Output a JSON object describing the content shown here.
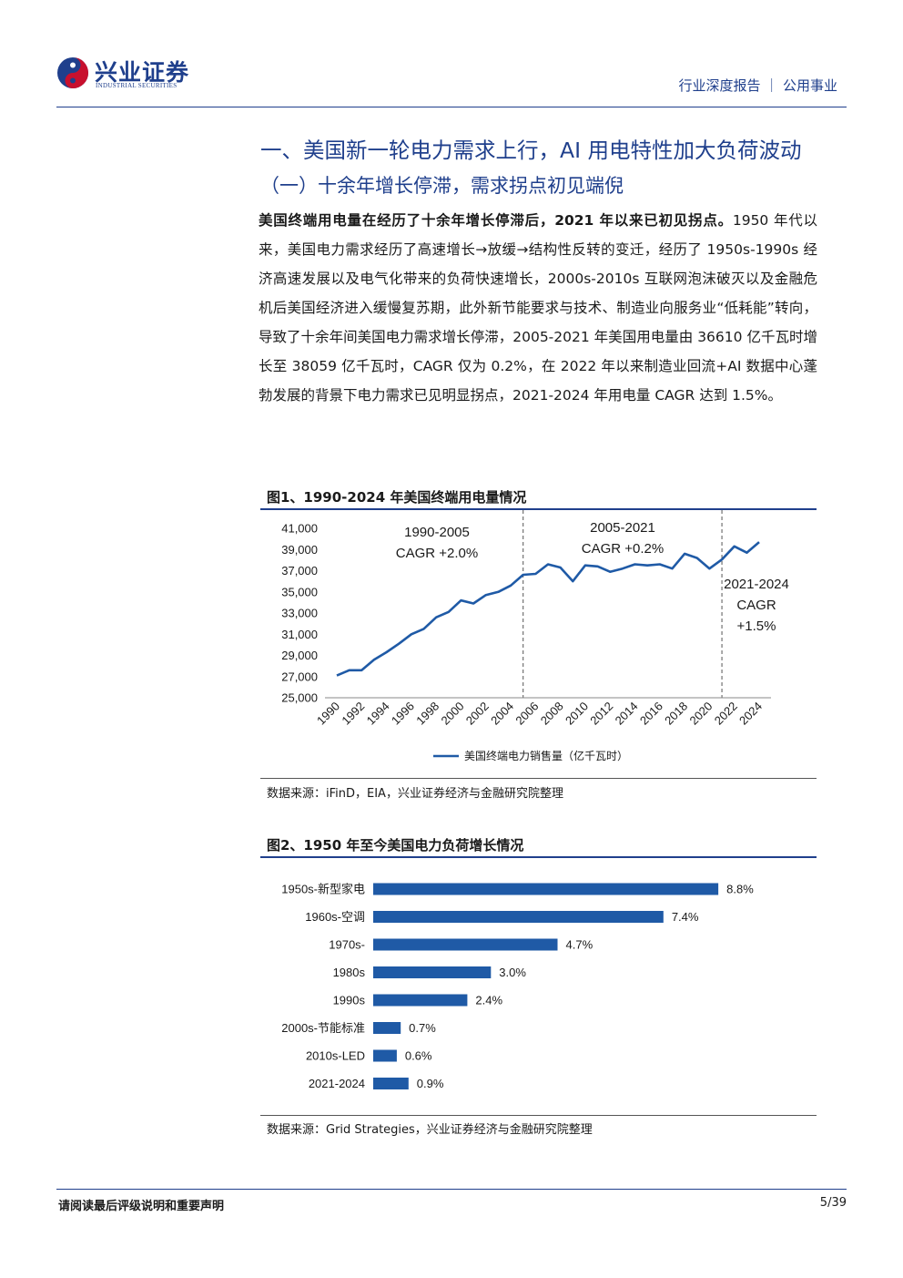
{
  "header": {
    "logo_cn": "兴业证券",
    "logo_en": "INDUSTRIAL SECURITIES",
    "category": "行业深度报告 ｜ 公用事业"
  },
  "section": {
    "h1": "一、美国新一轮电力需求上行，AI 用电特性加大负荷波动",
    "h2": "（一）十余年增长停滞，需求拐点初见端倪"
  },
  "paragraph": {
    "bold_lead": "美国终端用电量在经历了十余年增长停滞后，2021 年以来已初见拐点。",
    "body": "1950 年代以来，美国电力需求经历了高速增长→放缓→结构性反转的变迁，经历了 1950s-1990s 经济高速发展以及电气化带来的负荷快速增长，2000s-2010s 互联网泡沫破灭以及金融危机后美国经济进入缓慢复苏期，此外新节能要求与技术、制造业向服务业“低耗能”转向，导致了十余年间美国电力需求增长停滞，2005-2021 年美国用电量由 36610 亿千瓦时增长至 38059 亿千瓦时，CAGR 仅为 0.2%，在 2022 年以来制造业回流+AI 数据中心蓬勃发展的背景下电力需求已见明显拐点，2021-2024 年用电量 CAGR 达到 1.5%。"
  },
  "figure1": {
    "title": "图1、1990-2024 年美国终端用电量情况",
    "source": "数据来源：iFinD，EIA，兴业证券经济与金融研究院整理"
  },
  "figure2": {
    "title": "图2、1950 年至今美国电力负荷增长情况",
    "source": "数据来源：Grid Strategies，兴业证券经济与金融研究院整理"
  },
  "footer": {
    "disclaimer": "请阅读最后评级说明和重要声明",
    "page": "5/39"
  },
  "colors": {
    "brand": "#1f3f8c",
    "series": "#1f5aa6",
    "logo_red": "#c8102e"
  },
  "chart_data": [
    {
      "type": "line",
      "x": [
        1990,
        1991,
        1992,
        1993,
        1994,
        1995,
        1996,
        1997,
        1998,
        1999,
        2000,
        2001,
        2002,
        2003,
        2004,
        2005,
        2006,
        2007,
        2008,
        2009,
        2010,
        2011,
        2012,
        2013,
        2014,
        2015,
        2016,
        2017,
        2018,
        2019,
        2020,
        2021,
        2022,
        2023,
        2024
      ],
      "x_tick_labels": [
        "1990",
        "1992",
        "1994",
        "1996",
        "1998",
        "2000",
        "2002",
        "2004",
        "2006",
        "2008",
        "2010",
        "2012",
        "2014",
        "2016",
        "2018",
        "2020",
        "2022",
        "2024"
      ],
      "series": [
        {
          "name": "美国终端电力销售量（亿千瓦时）",
          "values": [
            27100,
            27600,
            27600,
            28600,
            29300,
            30100,
            31000,
            31500,
            32600,
            33100,
            34200,
            33900,
            34700,
            35000,
            35600,
            36610,
            36700,
            37600,
            37300,
            36000,
            37500,
            37400,
            36900,
            37200,
            37600,
            37500,
            37600,
            37200,
            38600,
            38200,
            37200,
            38059,
            39300,
            38700,
            39700
          ]
        }
      ],
      "y_ticks": [
        "41,000",
        "39,000",
        "37,000",
        "35,000",
        "33,000",
        "31,000",
        "29,000",
        "27,000",
        "25,000"
      ],
      "ylim": [
        25000,
        41000
      ],
      "vlines": [
        2005,
        2021
      ],
      "annotations": [
        {
          "line1": "1990-2005",
          "line2": "CAGR +2.0%"
        },
        {
          "line1": "2005-2021",
          "line2": "CAGR +0.2%"
        },
        {
          "line1": "2021-2024",
          "line2": "CAGR",
          "line3": "+1.5%"
        }
      ],
      "legend": "bottom-center",
      "grid": false
    },
    {
      "type": "bar",
      "orientation": "horizontal",
      "categories": [
        "1950s-新型家电",
        "1960s-空调",
        "1970s-",
        "1980s",
        "1990s",
        "2000s-节能标准",
        "2010s-LED",
        "2021-2024"
      ],
      "values": [
        8.8,
        7.4,
        4.7,
        3.0,
        2.4,
        0.7,
        0.6,
        0.9
      ],
      "value_labels": [
        "8.8%",
        "7.4%",
        "4.7%",
        "3.0%",
        "2.4%",
        "0.7%",
        "0.6%",
        "0.9%"
      ],
      "xlim": [
        0,
        9.4
      ],
      "grid": false
    }
  ]
}
